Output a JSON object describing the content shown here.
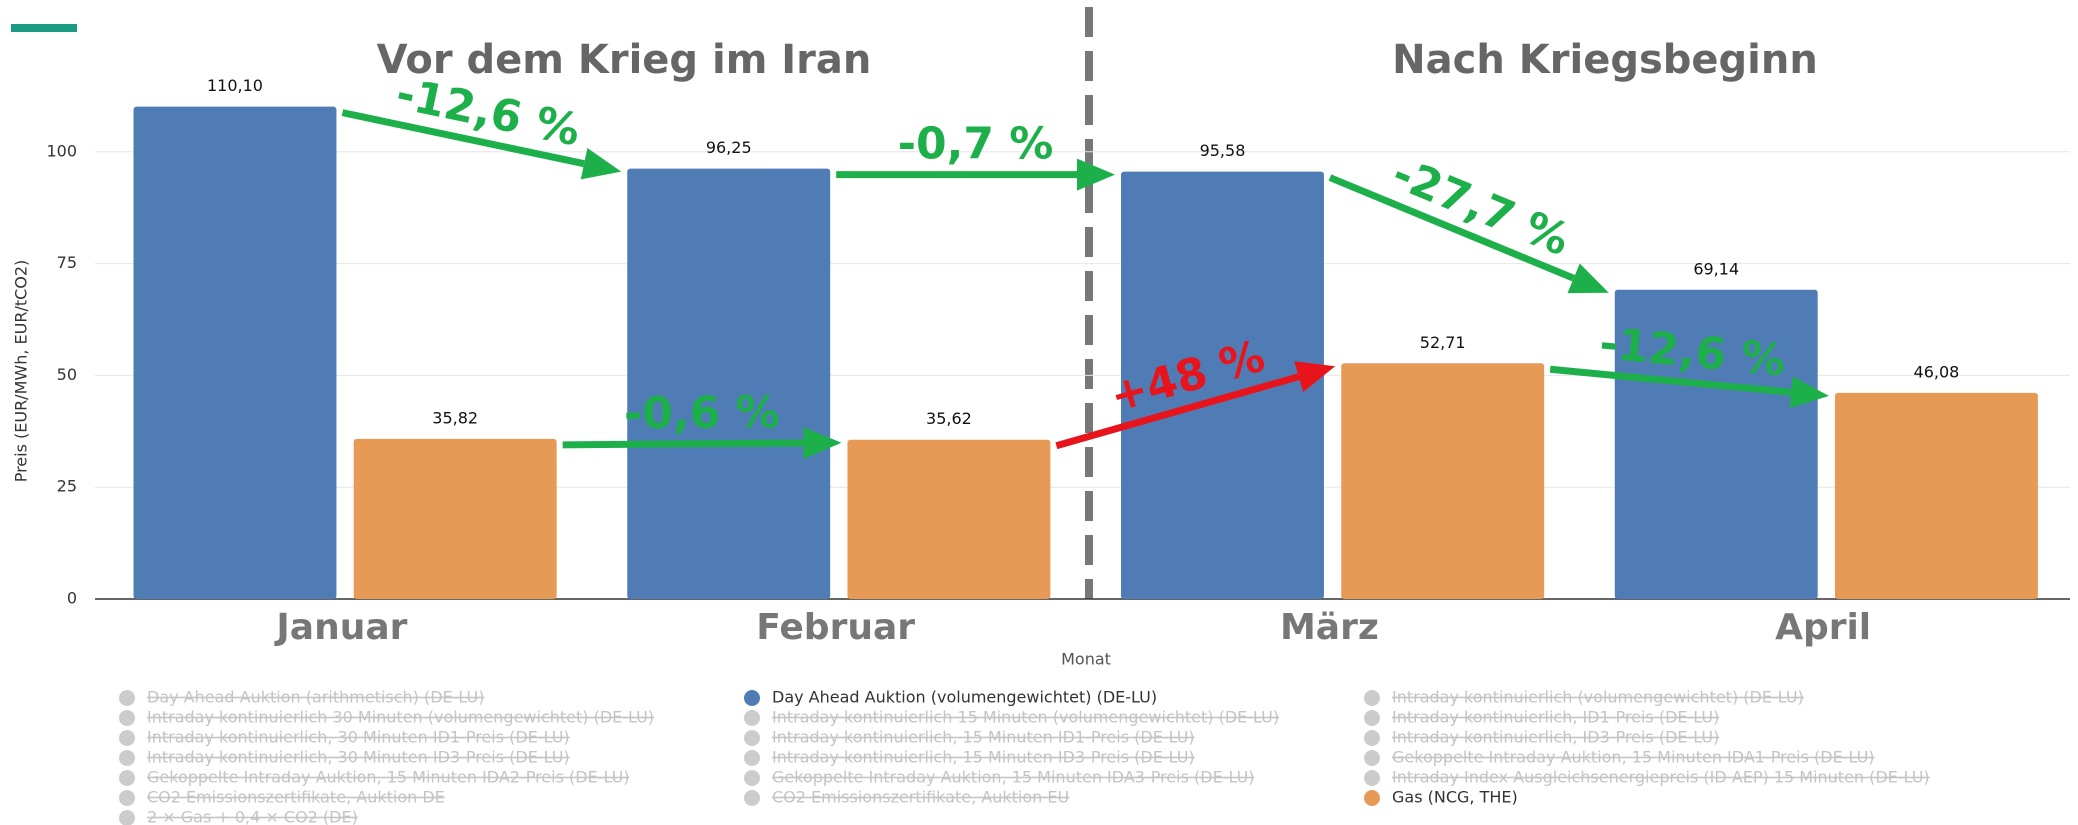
{
  "chart_data": {
    "type": "bar",
    "section_titles": [
      "Vor dem Krieg im Iran",
      "Nach Kriegsbeginn"
    ],
    "categories": [
      "Januar",
      "Februar",
      "März",
      "April"
    ],
    "series": [
      {
        "name": "Day Ahead Auktion (volumengewichtet) (DE-LU)",
        "color": "#4f7cb5",
        "values": [
          110.1,
          96.25,
          95.58,
          69.14
        ],
        "value_labels": [
          "110,10",
          "96,25",
          "95,58",
          "69,14"
        ]
      },
      {
        "name": "Gas (NCG, THE)",
        "color": "#e69a56",
        "values": [
          35.82,
          35.62,
          52.71,
          46.08
        ],
        "value_labels": [
          "35,82",
          "35,62",
          "52,71",
          "46,08"
        ]
      }
    ],
    "ylim": [
      0,
      125
    ],
    "yticks": [
      0,
      25,
      50,
      75,
      100
    ],
    "grid": true,
    "y_label": "Preis (EUR/MWh, EUR/tCO2)",
    "x_label": "Monat",
    "annotations": [
      {
        "text": "-12,6 %",
        "color": "#1db04a"
      },
      {
        "text": "-0,7 %",
        "color": "#1db04a"
      },
      {
        "text": "-27,7 %",
        "color": "#1db04a"
      },
      {
        "text": "-12,6 %",
        "color": "#1db04a"
      },
      {
        "text": "-0,6 %",
        "color": "#1db04a"
      },
      {
        "text": "+48 %",
        "color": "#e8141c"
      }
    ],
    "inactive_legend": [
      [
        "Day Ahead Auktion (arithmetisch) (DE-LU)",
        "Intraday kontinuierlich 30 Minuten (volumengewichtet) (DE-LU)",
        "Intraday kontinuierlich, 30 Minuten ID1-Preis (DE-LU)",
        "Intraday kontinuierlich, 30 Minuten ID3-Preis (DE-LU)",
        "Gekoppelte Intraday Auktion, 15 Minuten IDA2-Preis (DE-LU)",
        "CO2 Emissionszertifikate, Auktion DE",
        "2 × Gas + 0,4 × CO2 (DE)"
      ],
      [
        "Intraday kontinuierlich 15 Minuten (volumengewichtet) (DE-LU)",
        "Intraday kontinuierlich, 15 Minuten ID1-Preis (DE-LU)",
        "Intraday kontinuierlich, 15 Minuten ID3-Preis (DE-LU)",
        "Gekoppelte Intraday Auktion, 15 Minuten IDA3-Preis (DE-LU)",
        "CO2 Emissionszertifikate, Auktion EU"
      ],
      [
        "Intraday kontinuierlich (volumengewichtet) (DE-LU)",
        "Intraday kontinuierlich, ID1-Preis (DE-LU)",
        "Intraday kontinuierlich, ID3-Preis (DE-LU)",
        "Gekoppelte Intraday Auktion, 15 Minuten IDA1-Preis (DE-LU)",
        "Intraday Index Ausgleichsenergiepreis (ID AEP) 15 Minuten (DE-LU)"
      ]
    ]
  }
}
